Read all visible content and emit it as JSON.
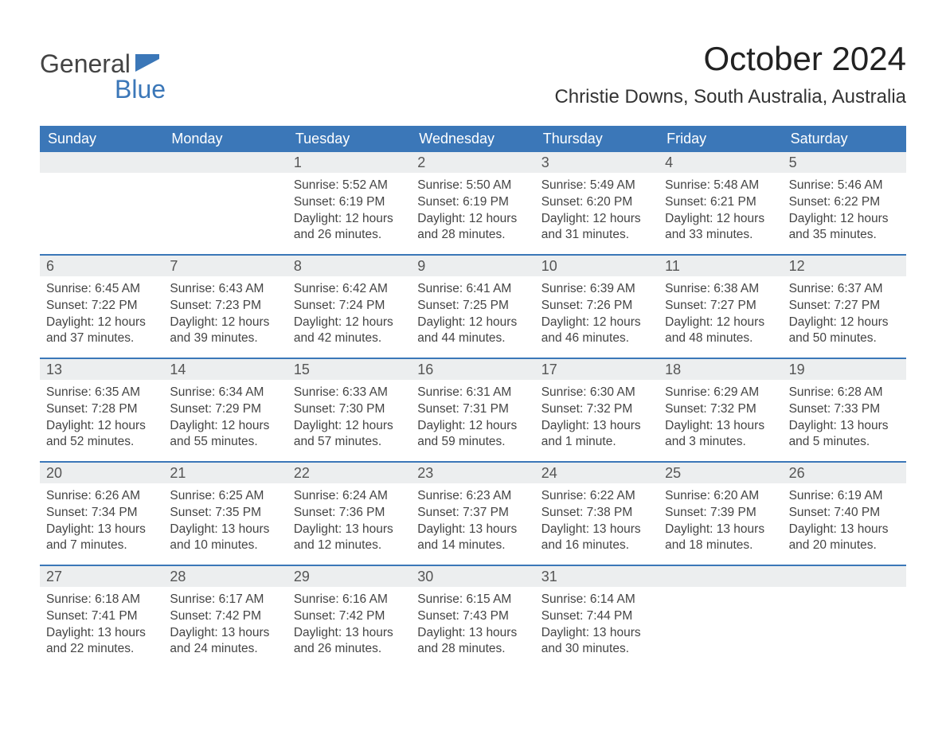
{
  "logo": {
    "text1": "General",
    "text2": "Blue"
  },
  "colors": {
    "brand": "#3b77b8",
    "headerBg": "#3b77b8",
    "dayNumBg": "#eceeef",
    "text": "#3a3a3a",
    "background": "#ffffff"
  },
  "title": "October 2024",
  "location": "Christie Downs, South Australia, Australia",
  "dayHeaders": [
    "Sunday",
    "Monday",
    "Tuesday",
    "Wednesday",
    "Thursday",
    "Friday",
    "Saturday"
  ],
  "weeks": [
    [
      {
        "num": "",
        "sunrise": "",
        "sunset": "",
        "daylight": ""
      },
      {
        "num": "",
        "sunrise": "",
        "sunset": "",
        "daylight": ""
      },
      {
        "num": "1",
        "sunrise": "Sunrise: 5:52 AM",
        "sunset": "Sunset: 6:19 PM",
        "daylight": "Daylight: 12 hours and 26 minutes."
      },
      {
        "num": "2",
        "sunrise": "Sunrise: 5:50 AM",
        "sunset": "Sunset: 6:19 PM",
        "daylight": "Daylight: 12 hours and 28 minutes."
      },
      {
        "num": "3",
        "sunrise": "Sunrise: 5:49 AM",
        "sunset": "Sunset: 6:20 PM",
        "daylight": "Daylight: 12 hours and 31 minutes."
      },
      {
        "num": "4",
        "sunrise": "Sunrise: 5:48 AM",
        "sunset": "Sunset: 6:21 PM",
        "daylight": "Daylight: 12 hours and 33 minutes."
      },
      {
        "num": "5",
        "sunrise": "Sunrise: 5:46 AM",
        "sunset": "Sunset: 6:22 PM",
        "daylight": "Daylight: 12 hours and 35 minutes."
      }
    ],
    [
      {
        "num": "6",
        "sunrise": "Sunrise: 6:45 AM",
        "sunset": "Sunset: 7:22 PM",
        "daylight": "Daylight: 12 hours and 37 minutes."
      },
      {
        "num": "7",
        "sunrise": "Sunrise: 6:43 AM",
        "sunset": "Sunset: 7:23 PM",
        "daylight": "Daylight: 12 hours and 39 minutes."
      },
      {
        "num": "8",
        "sunrise": "Sunrise: 6:42 AM",
        "sunset": "Sunset: 7:24 PM",
        "daylight": "Daylight: 12 hours and 42 minutes."
      },
      {
        "num": "9",
        "sunrise": "Sunrise: 6:41 AM",
        "sunset": "Sunset: 7:25 PM",
        "daylight": "Daylight: 12 hours and 44 minutes."
      },
      {
        "num": "10",
        "sunrise": "Sunrise: 6:39 AM",
        "sunset": "Sunset: 7:26 PM",
        "daylight": "Daylight: 12 hours and 46 minutes."
      },
      {
        "num": "11",
        "sunrise": "Sunrise: 6:38 AM",
        "sunset": "Sunset: 7:27 PM",
        "daylight": "Daylight: 12 hours and 48 minutes."
      },
      {
        "num": "12",
        "sunrise": "Sunrise: 6:37 AM",
        "sunset": "Sunset: 7:27 PM",
        "daylight": "Daylight: 12 hours and 50 minutes."
      }
    ],
    [
      {
        "num": "13",
        "sunrise": "Sunrise: 6:35 AM",
        "sunset": "Sunset: 7:28 PM",
        "daylight": "Daylight: 12 hours and 52 minutes."
      },
      {
        "num": "14",
        "sunrise": "Sunrise: 6:34 AM",
        "sunset": "Sunset: 7:29 PM",
        "daylight": "Daylight: 12 hours and 55 minutes."
      },
      {
        "num": "15",
        "sunrise": "Sunrise: 6:33 AM",
        "sunset": "Sunset: 7:30 PM",
        "daylight": "Daylight: 12 hours and 57 minutes."
      },
      {
        "num": "16",
        "sunrise": "Sunrise: 6:31 AM",
        "sunset": "Sunset: 7:31 PM",
        "daylight": "Daylight: 12 hours and 59 minutes."
      },
      {
        "num": "17",
        "sunrise": "Sunrise: 6:30 AM",
        "sunset": "Sunset: 7:32 PM",
        "daylight": "Daylight: 13 hours and 1 minute."
      },
      {
        "num": "18",
        "sunrise": "Sunrise: 6:29 AM",
        "sunset": "Sunset: 7:32 PM",
        "daylight": "Daylight: 13 hours and 3 minutes."
      },
      {
        "num": "19",
        "sunrise": "Sunrise: 6:28 AM",
        "sunset": "Sunset: 7:33 PM",
        "daylight": "Daylight: 13 hours and 5 minutes."
      }
    ],
    [
      {
        "num": "20",
        "sunrise": "Sunrise: 6:26 AM",
        "sunset": "Sunset: 7:34 PM",
        "daylight": "Daylight: 13 hours and 7 minutes."
      },
      {
        "num": "21",
        "sunrise": "Sunrise: 6:25 AM",
        "sunset": "Sunset: 7:35 PM",
        "daylight": "Daylight: 13 hours and 10 minutes."
      },
      {
        "num": "22",
        "sunrise": "Sunrise: 6:24 AM",
        "sunset": "Sunset: 7:36 PM",
        "daylight": "Daylight: 13 hours and 12 minutes."
      },
      {
        "num": "23",
        "sunrise": "Sunrise: 6:23 AM",
        "sunset": "Sunset: 7:37 PM",
        "daylight": "Daylight: 13 hours and 14 minutes."
      },
      {
        "num": "24",
        "sunrise": "Sunrise: 6:22 AM",
        "sunset": "Sunset: 7:38 PM",
        "daylight": "Daylight: 13 hours and 16 minutes."
      },
      {
        "num": "25",
        "sunrise": "Sunrise: 6:20 AM",
        "sunset": "Sunset: 7:39 PM",
        "daylight": "Daylight: 13 hours and 18 minutes."
      },
      {
        "num": "26",
        "sunrise": "Sunrise: 6:19 AM",
        "sunset": "Sunset: 7:40 PM",
        "daylight": "Daylight: 13 hours and 20 minutes."
      }
    ],
    [
      {
        "num": "27",
        "sunrise": "Sunrise: 6:18 AM",
        "sunset": "Sunset: 7:41 PM",
        "daylight": "Daylight: 13 hours and 22 minutes."
      },
      {
        "num": "28",
        "sunrise": "Sunrise: 6:17 AM",
        "sunset": "Sunset: 7:42 PM",
        "daylight": "Daylight: 13 hours and 24 minutes."
      },
      {
        "num": "29",
        "sunrise": "Sunrise: 6:16 AM",
        "sunset": "Sunset: 7:42 PM",
        "daylight": "Daylight: 13 hours and 26 minutes."
      },
      {
        "num": "30",
        "sunrise": "Sunrise: 6:15 AM",
        "sunset": "Sunset: 7:43 PM",
        "daylight": "Daylight: 13 hours and 28 minutes."
      },
      {
        "num": "31",
        "sunrise": "Sunrise: 6:14 AM",
        "sunset": "Sunset: 7:44 PM",
        "daylight": "Daylight: 13 hours and 30 minutes."
      },
      {
        "num": "",
        "sunrise": "",
        "sunset": "",
        "daylight": ""
      },
      {
        "num": "",
        "sunrise": "",
        "sunset": "",
        "daylight": ""
      }
    ]
  ]
}
